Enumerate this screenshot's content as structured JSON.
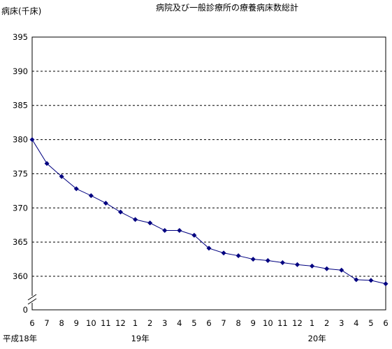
{
  "chart_data": {
    "type": "line",
    "title": "病院及び一般診療所の療養病床数総計",
    "ylabel": "病床(千床)",
    "xlabel": "",
    "ylim": [
      360,
      395
    ],
    "y_ticks": [
      "395",
      "390",
      "385",
      "380",
      "375",
      "370",
      "365",
      "360",
      "0"
    ],
    "y_axis_break": true,
    "grid": "horizontal-dashed",
    "x_tick_labels": [
      "6",
      "7",
      "8",
      "9",
      "10",
      "11",
      "12",
      "1",
      "2",
      "3",
      "4",
      "5",
      "6",
      "7",
      "8",
      "9",
      "10",
      "11",
      "12",
      "1",
      "2",
      "3",
      "4",
      "5",
      "6"
    ],
    "year_labels": [
      {
        "text": "平成18年",
        "at_index": 0
      },
      {
        "text": "19年",
        "at_index": 7
      },
      {
        "text": "20年",
        "at_index": 19
      }
    ],
    "series": [
      {
        "color": "#000080",
        "marker": "diamond",
        "values": [
          380.0,
          376.5,
          374.6,
          372.8,
          371.8,
          370.7,
          369.4,
          368.3,
          367.8,
          366.7,
          366.7,
          366.0,
          364.1,
          363.4,
          363.0,
          362.5,
          362.3,
          362.0,
          361.7,
          361.5,
          361.1,
          360.9,
          359.5,
          359.4,
          358.9
        ]
      }
    ]
  }
}
